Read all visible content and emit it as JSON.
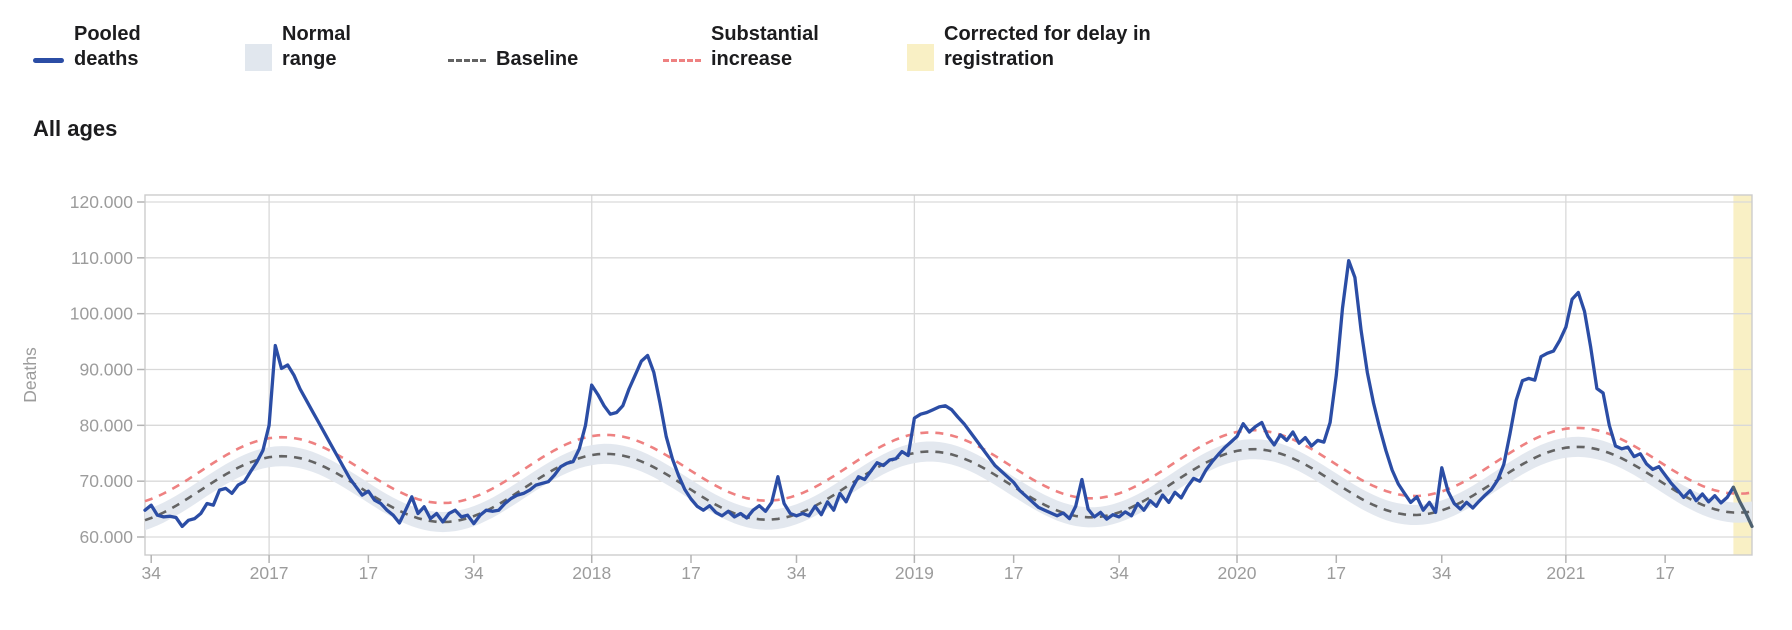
{
  "title": "All ages",
  "legend": {
    "items": [
      {
        "label": "Pooled\ndeaths",
        "swatch": "line",
        "color": "#2b4da5"
      },
      {
        "label": "Normal\nrange",
        "swatch": "box",
        "color": "#e1e7ee"
      },
      {
        "label": "Baseline",
        "swatch": "dash",
        "color": "#636363"
      },
      {
        "label": "Substantial\nincrease",
        "swatch": "dash",
        "color": "#ee8181"
      },
      {
        "label": "Corrected for delay in\nregistration",
        "swatch": "box",
        "color": "#f9f0c5"
      }
    ]
  },
  "chart_data": {
    "type": "line",
    "title": "All ages",
    "xlabel": "",
    "ylabel": "Deaths",
    "ylim": [
      60000,
      120000
    ],
    "grid": "horizontal gridlines at every 10.000; vertical gridlines at each year start",
    "legend_position": "top",
    "values_unit": "thousands of deaths per week",
    "x_description": "weekly ISO-week series starting 2016-W33; ticks mark week numbers and year starts",
    "y_ticks": [
      {
        "value": 120,
        "label": "120.000"
      },
      {
        "value": 110,
        "label": "110.000"
      },
      {
        "value": 100,
        "label": "100.000"
      },
      {
        "value": 90,
        "label": "90.000"
      },
      {
        "value": 80,
        "label": "80.000"
      },
      {
        "value": 70,
        "label": "70.000"
      },
      {
        "value": 60,
        "label": "60.000"
      }
    ],
    "x_ticks": [
      {
        "index": 1,
        "label": "34"
      },
      {
        "index": 20,
        "label": "2017"
      },
      {
        "index": 36,
        "label": "17"
      },
      {
        "index": 53,
        "label": "34"
      },
      {
        "index": 72,
        "label": "2018"
      },
      {
        "index": 88,
        "label": "17"
      },
      {
        "index": 105,
        "label": "34"
      },
      {
        "index": 124,
        "label": "2019"
      },
      {
        "index": 140,
        "label": "17"
      },
      {
        "index": 157,
        "label": "34"
      },
      {
        "index": 176,
        "label": "2020"
      },
      {
        "index": 192,
        "label": "17"
      },
      {
        "index": 209,
        "label": "34"
      },
      {
        "index": 229,
        "label": "2021"
      },
      {
        "index": 245,
        "label": "17"
      }
    ],
    "year_gridline_indices": [
      20,
      72,
      124,
      176,
      229
    ],
    "series": [
      {
        "name": "Pooled deaths",
        "color": "#2b4da5",
        "values": [
          64.8,
          65.7,
          63.9,
          63.6,
          63.7,
          63.5,
          61.9,
          63.0,
          63.3,
          64.2,
          66.0,
          65.7,
          68.4,
          68.7,
          67.8,
          69.3,
          69.9,
          71.7,
          73.4,
          75.5,
          80.0,
          94.3,
          90.2,
          90.8,
          89.0,
          86.5,
          84.5,
          82.5,
          80.5,
          78.5,
          76.5,
          74.5,
          72.5,
          70.5,
          69.0,
          67.5,
          68.2,
          66.6,
          66.0,
          64.8,
          63.9,
          62.5,
          64.8,
          67.2,
          64.2,
          65.4,
          63.3,
          64.2,
          62.7,
          64.2,
          64.8,
          63.6,
          63.9,
          62.4,
          63.9,
          64.8,
          64.6,
          64.8,
          66.0,
          66.9,
          67.5,
          67.8,
          68.4,
          69.3,
          69.6,
          69.9,
          71.1,
          72.6,
          73.2,
          73.5,
          75.8,
          80.0,
          87.2,
          85.5,
          83.5,
          82.0,
          82.3,
          83.5,
          86.5,
          89.0,
          91.5,
          92.5,
          89.5,
          84.0,
          78.0,
          74.0,
          71.0,
          68.5,
          66.8,
          65.5,
          64.8,
          65.6,
          64.4,
          63.8,
          64.6,
          63.6,
          64.2,
          63.4,
          64.8,
          65.6,
          64.6,
          66.2,
          70.8,
          66.0,
          64.2,
          63.8,
          64.2,
          63.8,
          65.5,
          64.0,
          66.3,
          64.8,
          67.8,
          66.3,
          68.8,
          70.8,
          70.3,
          71.8,
          73.3,
          72.8,
          73.8,
          74.0,
          75.3,
          74.6,
          81.3,
          82.0,
          82.3,
          82.8,
          83.3,
          83.5,
          82.8,
          81.5,
          80.3,
          78.8,
          77.3,
          75.8,
          74.3,
          72.8,
          71.8,
          70.8,
          69.8,
          68.3,
          67.3,
          66.3,
          65.3,
          64.8,
          64.3,
          63.8,
          64.3,
          63.3,
          65.5,
          70.3,
          65.0,
          63.6,
          64.4,
          63.2,
          64.0,
          63.6,
          64.5,
          63.8,
          66.0,
          64.8,
          66.5,
          65.5,
          67.5,
          66.2,
          68.0,
          67.0,
          69.0,
          70.5,
          70.0,
          72.0,
          73.5,
          74.8,
          76.0,
          77.0,
          78.0,
          80.3,
          78.8,
          79.8,
          80.5,
          78.0,
          76.5,
          78.3,
          77.3,
          78.8,
          76.8,
          77.8,
          76.3,
          77.3,
          77.0,
          80.5,
          89.0,
          101.0,
          109.5,
          106.5,
          97.0,
          89.5,
          84.0,
          79.5,
          75.5,
          72.0,
          69.5,
          67.8,
          66.2,
          67.2,
          64.8,
          66.2,
          64.4,
          72.4,
          68.2,
          66.0,
          65.0,
          66.2,
          65.2,
          66.4,
          67.5,
          68.5,
          70.2,
          73.0,
          78.5,
          84.5,
          88.0,
          88.4,
          88.1,
          92.3,
          92.9,
          93.3,
          95.2,
          97.6,
          102.6,
          103.8,
          100.4,
          94.0,
          86.6,
          85.8,
          80.0,
          76.3,
          75.8,
          76.1,
          74.4,
          74.9,
          73.1,
          72.1,
          72.6,
          71.1,
          69.6,
          68.4,
          67.1,
          68.3,
          66.5,
          67.7,
          66.3,
          67.4,
          66.1,
          67.1,
          68.9,
          66.4,
          64.3,
          61.9
        ]
      }
    ],
    "baseline_model": {
      "name": "Baseline",
      "mean_at_start": 68.3,
      "trend_per_week": 0.008,
      "amplitude": 6.0,
      "period_weeks": 52.2,
      "peak_index": 22,
      "substantial_increase_offset": 3.4,
      "normal_range_halfwidth": 1.8
    },
    "delay_correction": {
      "band_start_index": 256,
      "corrected_tail_start_index": 256,
      "note": "shaded band at right edge marks weeks corrected for registration delay; corrected tail drawn in slate"
    }
  },
  "colors": {
    "pooled_deaths": "#2b4da5",
    "baseline": "#636363",
    "substantial_increase": "#ee8181",
    "normal_range_band": "#e1e7ee",
    "delay_band": "#f9f0c5",
    "corrected_tail": "#4e6170",
    "gridline": "#d9d9d9",
    "plot_border": "#cccccc",
    "tick": "#b3b3b3",
    "axis_text": "#9c9c9c"
  }
}
